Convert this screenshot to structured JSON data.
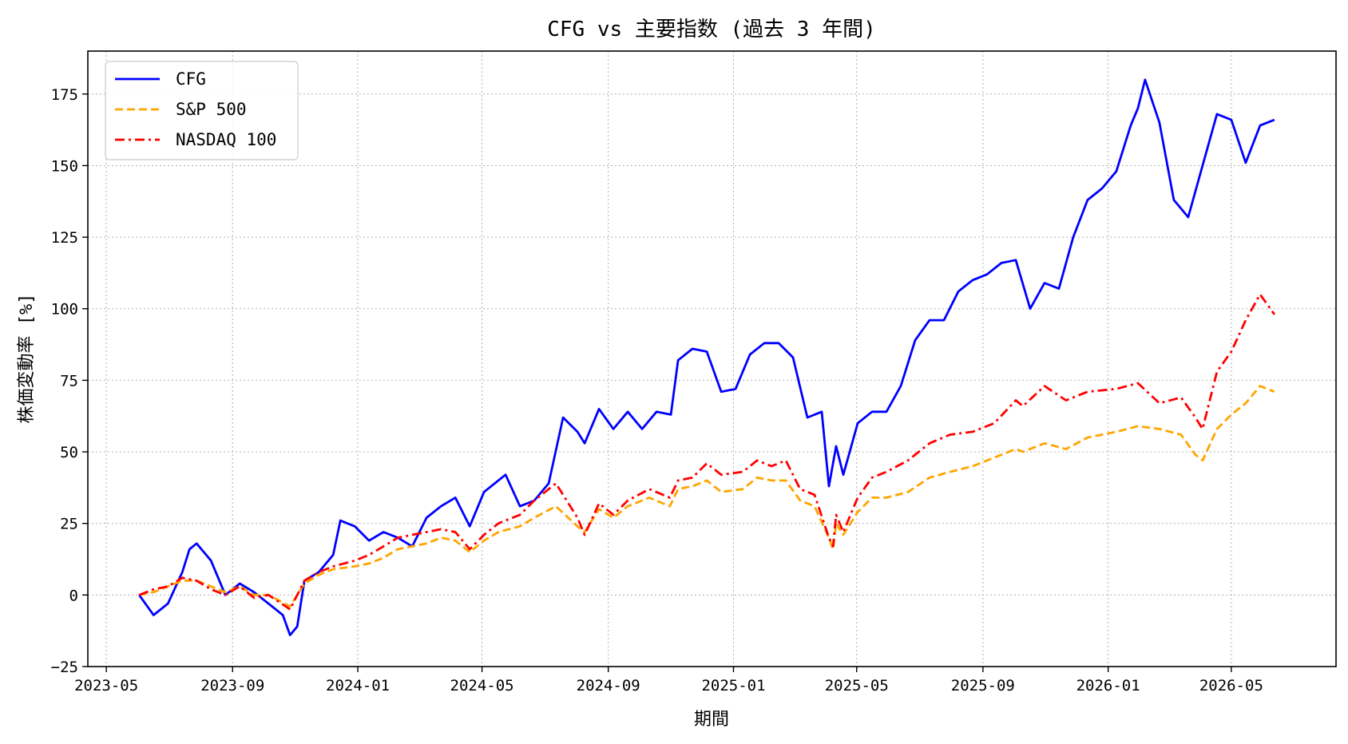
{
  "chart_data": {
    "type": "line",
    "title": "CFG vs 主要指数 (過去 3 年間)",
    "xlabel": "期間",
    "ylabel": "株価変動率 [%]",
    "xlim": [
      "2023-04-13",
      "2026-08-11"
    ],
    "ylim": [
      -25,
      190
    ],
    "grid": true,
    "legend_position": "top-left",
    "x_ticks": [
      "2023-05",
      "2023-09",
      "2024-01",
      "2024-05",
      "2024-09",
      "2025-01",
      "2025-05",
      "2025-09",
      "2026-01",
      "2026-05"
    ],
    "y_ticks": [
      -25,
      0,
      25,
      50,
      75,
      100,
      125,
      150,
      175
    ],
    "series": [
      {
        "name": "CFG",
        "color": "#0000ff",
        "style": "solid",
        "points": [
          [
            "2023-06-02",
            0
          ],
          [
            "2023-06-16",
            -7
          ],
          [
            "2023-06-30",
            -3
          ],
          [
            "2023-07-14",
            8
          ],
          [
            "2023-07-21",
            16
          ],
          [
            "2023-07-28",
            18
          ],
          [
            "2023-08-11",
            12
          ],
          [
            "2023-08-25",
            0
          ],
          [
            "2023-09-08",
            4
          ],
          [
            "2023-09-22",
            1
          ],
          [
            "2023-10-06",
            -3
          ],
          [
            "2023-10-20",
            -7
          ],
          [
            "2023-10-27",
            -14
          ],
          [
            "2023-11-03",
            -11
          ],
          [
            "2023-11-10",
            5
          ],
          [
            "2023-11-24",
            8
          ],
          [
            "2023-12-08",
            14
          ],
          [
            "2023-12-15",
            26
          ],
          [
            "2023-12-29",
            24
          ],
          [
            "2024-01-12",
            19
          ],
          [
            "2024-01-26",
            22
          ],
          [
            "2024-02-09",
            20
          ],
          [
            "2024-02-23",
            17
          ],
          [
            "2024-03-08",
            27
          ],
          [
            "2024-03-22",
            31
          ],
          [
            "2024-04-05",
            34
          ],
          [
            "2024-04-19",
            24
          ],
          [
            "2024-05-03",
            36
          ],
          [
            "2024-05-17",
            40
          ],
          [
            "2024-05-24",
            42
          ],
          [
            "2024-06-07",
            31
          ],
          [
            "2024-06-21",
            33
          ],
          [
            "2024-07-05",
            39
          ],
          [
            "2024-07-19",
            62
          ],
          [
            "2024-08-02",
            57
          ],
          [
            "2024-08-09",
            53
          ],
          [
            "2024-08-23",
            65
          ],
          [
            "2024-09-06",
            58
          ],
          [
            "2024-09-20",
            64
          ],
          [
            "2024-10-04",
            58
          ],
          [
            "2024-10-18",
            64
          ],
          [
            "2024-11-01",
            63
          ],
          [
            "2024-11-08",
            82
          ],
          [
            "2024-11-22",
            86
          ],
          [
            "2024-12-06",
            85
          ],
          [
            "2024-12-20",
            71
          ],
          [
            "2025-01-03",
            72
          ],
          [
            "2025-01-17",
            84
          ],
          [
            "2025-01-31",
            88
          ],
          [
            "2025-02-14",
            88
          ],
          [
            "2025-02-28",
            83
          ],
          [
            "2025-03-14",
            62
          ],
          [
            "2025-03-28",
            64
          ],
          [
            "2025-04-04",
            38
          ],
          [
            "2025-04-11",
            52
          ],
          [
            "2025-04-18",
            42
          ],
          [
            "2025-05-02",
            60
          ],
          [
            "2025-05-16",
            64
          ],
          [
            "2025-05-30",
            64
          ],
          [
            "2025-06-13",
            73
          ],
          [
            "2025-06-27",
            89
          ],
          [
            "2025-07-11",
            96
          ],
          [
            "2025-07-25",
            96
          ],
          [
            "2025-08-08",
            106
          ],
          [
            "2025-08-22",
            110
          ],
          [
            "2025-09-05",
            112
          ],
          [
            "2025-09-19",
            116
          ],
          [
            "2025-10-03",
            117
          ],
          [
            "2025-10-17",
            100
          ],
          [
            "2025-10-31",
            109
          ],
          [
            "2025-11-14",
            107
          ],
          [
            "2025-11-28",
            125
          ],
          [
            "2025-12-12",
            138
          ],
          [
            "2025-12-26",
            142
          ],
          [
            "2026-01-09",
            148
          ],
          [
            "2026-01-23",
            164
          ],
          [
            "2026-01-30",
            170
          ],
          [
            "2026-02-06",
            180
          ],
          [
            "2026-02-20",
            165
          ],
          [
            "2026-03-06",
            138
          ],
          [
            "2026-03-20",
            132
          ],
          [
            "2026-04-03",
            150
          ],
          [
            "2026-04-17",
            168
          ],
          [
            "2026-05-01",
            166
          ],
          [
            "2026-05-15",
            151
          ],
          [
            "2026-05-29",
            164
          ],
          [
            "2026-06-12",
            166
          ]
        ]
      },
      {
        "name": "S&P 500",
        "color": "#ffa500",
        "style": "dashed",
        "points": [
          [
            "2023-06-02",
            0
          ],
          [
            "2023-06-16",
            1
          ],
          [
            "2023-06-30",
            3
          ],
          [
            "2023-07-14",
            5
          ],
          [
            "2023-07-28",
            5
          ],
          [
            "2023-08-11",
            3
          ],
          [
            "2023-08-25",
            1
          ],
          [
            "2023-09-08",
            3
          ],
          [
            "2023-09-22",
            0
          ],
          [
            "2023-10-06",
            0
          ],
          [
            "2023-10-27",
            -4
          ],
          [
            "2023-11-10",
            4
          ],
          [
            "2023-11-24",
            7
          ],
          [
            "2023-12-08",
            9
          ],
          [
            "2023-12-29",
            10
          ],
          [
            "2024-01-12",
            11
          ],
          [
            "2024-01-26",
            13
          ],
          [
            "2024-02-09",
            16
          ],
          [
            "2024-02-23",
            17
          ],
          [
            "2024-03-08",
            18
          ],
          [
            "2024-03-22",
            20
          ],
          [
            "2024-04-05",
            19
          ],
          [
            "2024-04-19",
            15
          ],
          [
            "2024-05-03",
            19
          ],
          [
            "2024-05-17",
            22
          ],
          [
            "2024-06-07",
            24
          ],
          [
            "2024-06-21",
            27
          ],
          [
            "2024-07-12",
            31
          ],
          [
            "2024-08-02",
            24
          ],
          [
            "2024-08-09",
            22
          ],
          [
            "2024-08-23",
            30
          ],
          [
            "2024-09-06",
            27
          ],
          [
            "2024-09-20",
            31
          ],
          [
            "2024-10-11",
            34
          ],
          [
            "2024-10-31",
            31
          ],
          [
            "2024-11-08",
            37
          ],
          [
            "2024-11-22",
            38
          ],
          [
            "2024-12-06",
            40
          ],
          [
            "2024-12-20",
            36
          ],
          [
            "2025-01-10",
            37
          ],
          [
            "2025-01-24",
            41
          ],
          [
            "2025-02-07",
            40
          ],
          [
            "2025-02-21",
            40
          ],
          [
            "2025-03-07",
            33
          ],
          [
            "2025-03-21",
            31
          ],
          [
            "2025-04-04",
            20
          ],
          [
            "2025-04-08",
            16
          ],
          [
            "2025-04-11",
            25
          ],
          [
            "2025-04-18",
            21
          ],
          [
            "2025-05-02",
            29
          ],
          [
            "2025-05-16",
            34
          ],
          [
            "2025-05-30",
            34
          ],
          [
            "2025-06-20",
            36
          ],
          [
            "2025-07-11",
            41
          ],
          [
            "2025-07-31",
            43
          ],
          [
            "2025-08-22",
            45
          ],
          [
            "2025-09-12",
            48
          ],
          [
            "2025-10-03",
            51
          ],
          [
            "2025-10-10",
            50
          ],
          [
            "2025-10-31",
            53
          ],
          [
            "2025-11-21",
            51
          ],
          [
            "2025-12-12",
            55
          ],
          [
            "2026-01-09",
            57
          ],
          [
            "2026-01-30",
            59
          ],
          [
            "2026-02-20",
            58
          ],
          [
            "2026-03-13",
            56
          ],
          [
            "2026-03-27",
            49
          ],
          [
            "2026-04-03",
            47
          ],
          [
            "2026-04-17",
            58
          ],
          [
            "2026-05-01",
            63
          ],
          [
            "2026-05-15",
            67
          ],
          [
            "2026-05-29",
            73
          ],
          [
            "2026-06-12",
            71
          ]
        ]
      },
      {
        "name": "NASDAQ 100",
        "color": "#ff0000",
        "style": "dashdot",
        "points": [
          [
            "2023-06-02",
            0
          ],
          [
            "2023-06-16",
            2
          ],
          [
            "2023-06-30",
            3
          ],
          [
            "2023-07-14",
            6
          ],
          [
            "2023-07-28",
            5
          ],
          [
            "2023-08-11",
            2
          ],
          [
            "2023-08-25",
            0
          ],
          [
            "2023-09-08",
            3
          ],
          [
            "2023-09-22",
            -1
          ],
          [
            "2023-10-06",
            0
          ],
          [
            "2023-10-27",
            -5
          ],
          [
            "2023-11-10",
            5
          ],
          [
            "2023-11-24",
            8
          ],
          [
            "2023-12-08",
            10
          ],
          [
            "2023-12-29",
            12
          ],
          [
            "2024-01-12",
            14
          ],
          [
            "2024-01-26",
            17
          ],
          [
            "2024-02-09",
            20
          ],
          [
            "2024-02-23",
            21
          ],
          [
            "2024-03-08",
            22
          ],
          [
            "2024-03-22",
            23
          ],
          [
            "2024-04-05",
            22
          ],
          [
            "2024-04-19",
            16
          ],
          [
            "2024-05-03",
            21
          ],
          [
            "2024-05-17",
            25
          ],
          [
            "2024-06-07",
            28
          ],
          [
            "2024-06-21",
            33
          ],
          [
            "2024-07-12",
            39
          ],
          [
            "2024-08-02",
            27
          ],
          [
            "2024-08-09",
            21
          ],
          [
            "2024-08-23",
            32
          ],
          [
            "2024-09-06",
            28
          ],
          [
            "2024-09-20",
            33
          ],
          [
            "2024-10-11",
            37
          ],
          [
            "2024-10-31",
            34
          ],
          [
            "2024-11-08",
            40
          ],
          [
            "2024-11-22",
            41
          ],
          [
            "2024-12-06",
            46
          ],
          [
            "2024-12-20",
            42
          ],
          [
            "2025-01-10",
            43
          ],
          [
            "2025-01-24",
            47
          ],
          [
            "2025-02-07",
            45
          ],
          [
            "2025-02-21",
            47
          ],
          [
            "2025-03-07",
            37
          ],
          [
            "2025-03-21",
            35
          ],
          [
            "2025-04-04",
            20
          ],
          [
            "2025-04-08",
            17
          ],
          [
            "2025-04-11",
            28
          ],
          [
            "2025-04-18",
            22
          ],
          [
            "2025-05-02",
            34
          ],
          [
            "2025-05-16",
            41
          ],
          [
            "2025-05-30",
            43
          ],
          [
            "2025-06-20",
            47
          ],
          [
            "2025-07-11",
            53
          ],
          [
            "2025-07-31",
            56
          ],
          [
            "2025-08-22",
            57
          ],
          [
            "2025-09-12",
            60
          ],
          [
            "2025-10-03",
            68
          ],
          [
            "2025-10-10",
            66
          ],
          [
            "2025-10-31",
            73
          ],
          [
            "2025-11-21",
            68
          ],
          [
            "2025-12-12",
            71
          ],
          [
            "2026-01-09",
            72
          ],
          [
            "2026-01-30",
            74
          ],
          [
            "2026-02-20",
            67
          ],
          [
            "2026-03-13",
            69
          ],
          [
            "2026-03-27",
            62
          ],
          [
            "2026-04-03",
            58
          ],
          [
            "2026-04-17",
            78
          ],
          [
            "2026-05-01",
            85
          ],
          [
            "2026-05-15",
            96
          ],
          [
            "2026-05-29",
            105
          ],
          [
            "2026-06-12",
            98
          ]
        ]
      }
    ]
  }
}
